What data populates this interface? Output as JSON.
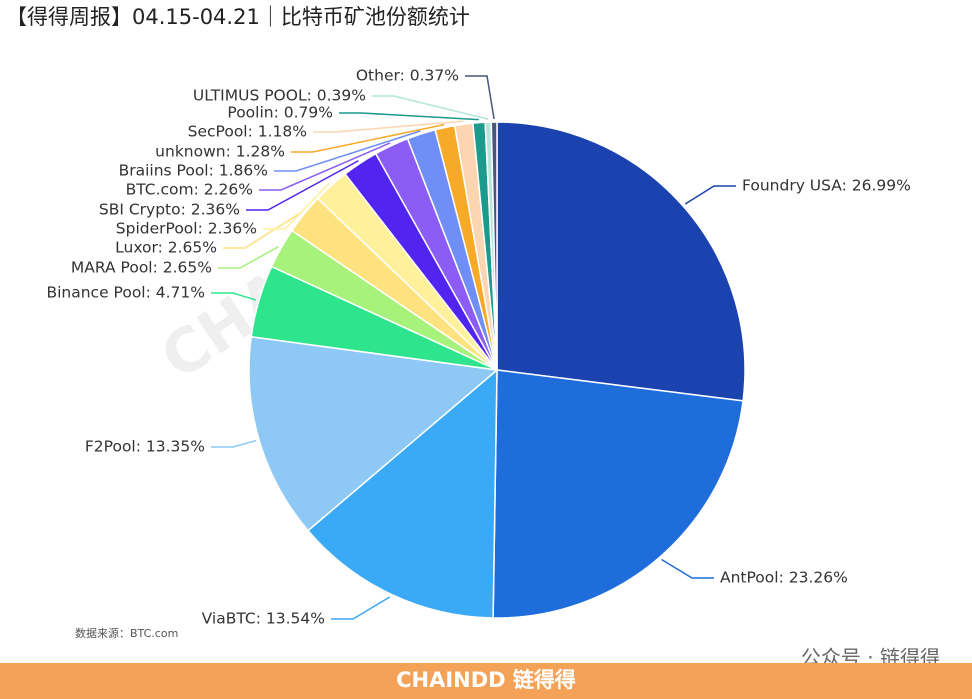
{
  "chart_data": {
    "type": "pie",
    "title": "【得得周报】04.15-04.21｜比特币矿池份额统计",
    "values": [
      26.99,
      23.26,
      13.54,
      13.35,
      4.71,
      2.65,
      2.65,
      2.36,
      2.36,
      2.26,
      1.86,
      1.28,
      1.18,
      0.79,
      0.39,
      0.37
    ],
    "value_labels": [
      "Foundry USA: 26.99%",
      "AntPool: 23.26%",
      "ViaBTC: 13.54%",
      "F2Pool: 13.35%",
      "Binance Pool: 4.71%",
      "MARA Pool: 2.65%",
      "Luxor: 2.65%",
      "SpiderPool: 2.36%",
      "SBI Crypto: 2.36%",
      "BTC.com: 2.26%",
      "Braiins Pool: 1.86%",
      "unknown: 1.28%",
      "SecPool: 1.18%",
      "Poolin: 0.79%",
      "ULTIMUS POOL: 0.39%",
      "Other: 0.37%"
    ],
    "colors": [
      "#1a43b0",
      "#1f6ddb",
      "#3aa9f6",
      "#8ec9f6",
      "#2ee58e",
      "#a6f27a",
      "#fde27f",
      "#fff09c",
      "#5224f0",
      "#8b5cf6",
      "#6f8ff7",
      "#f7a928",
      "#fcd6b0",
      "#1c9a8c",
      "#b5e5dc",
      "#47577a"
    ],
    "source": "数据来源：BTC.com",
    "watermarks": [
      "CHAINDD",
      "BTC.com",
      "链得得"
    ]
  },
  "footer": {
    "brand": "CHAINDD 链得得",
    "account": "公众号 · 链得得"
  }
}
